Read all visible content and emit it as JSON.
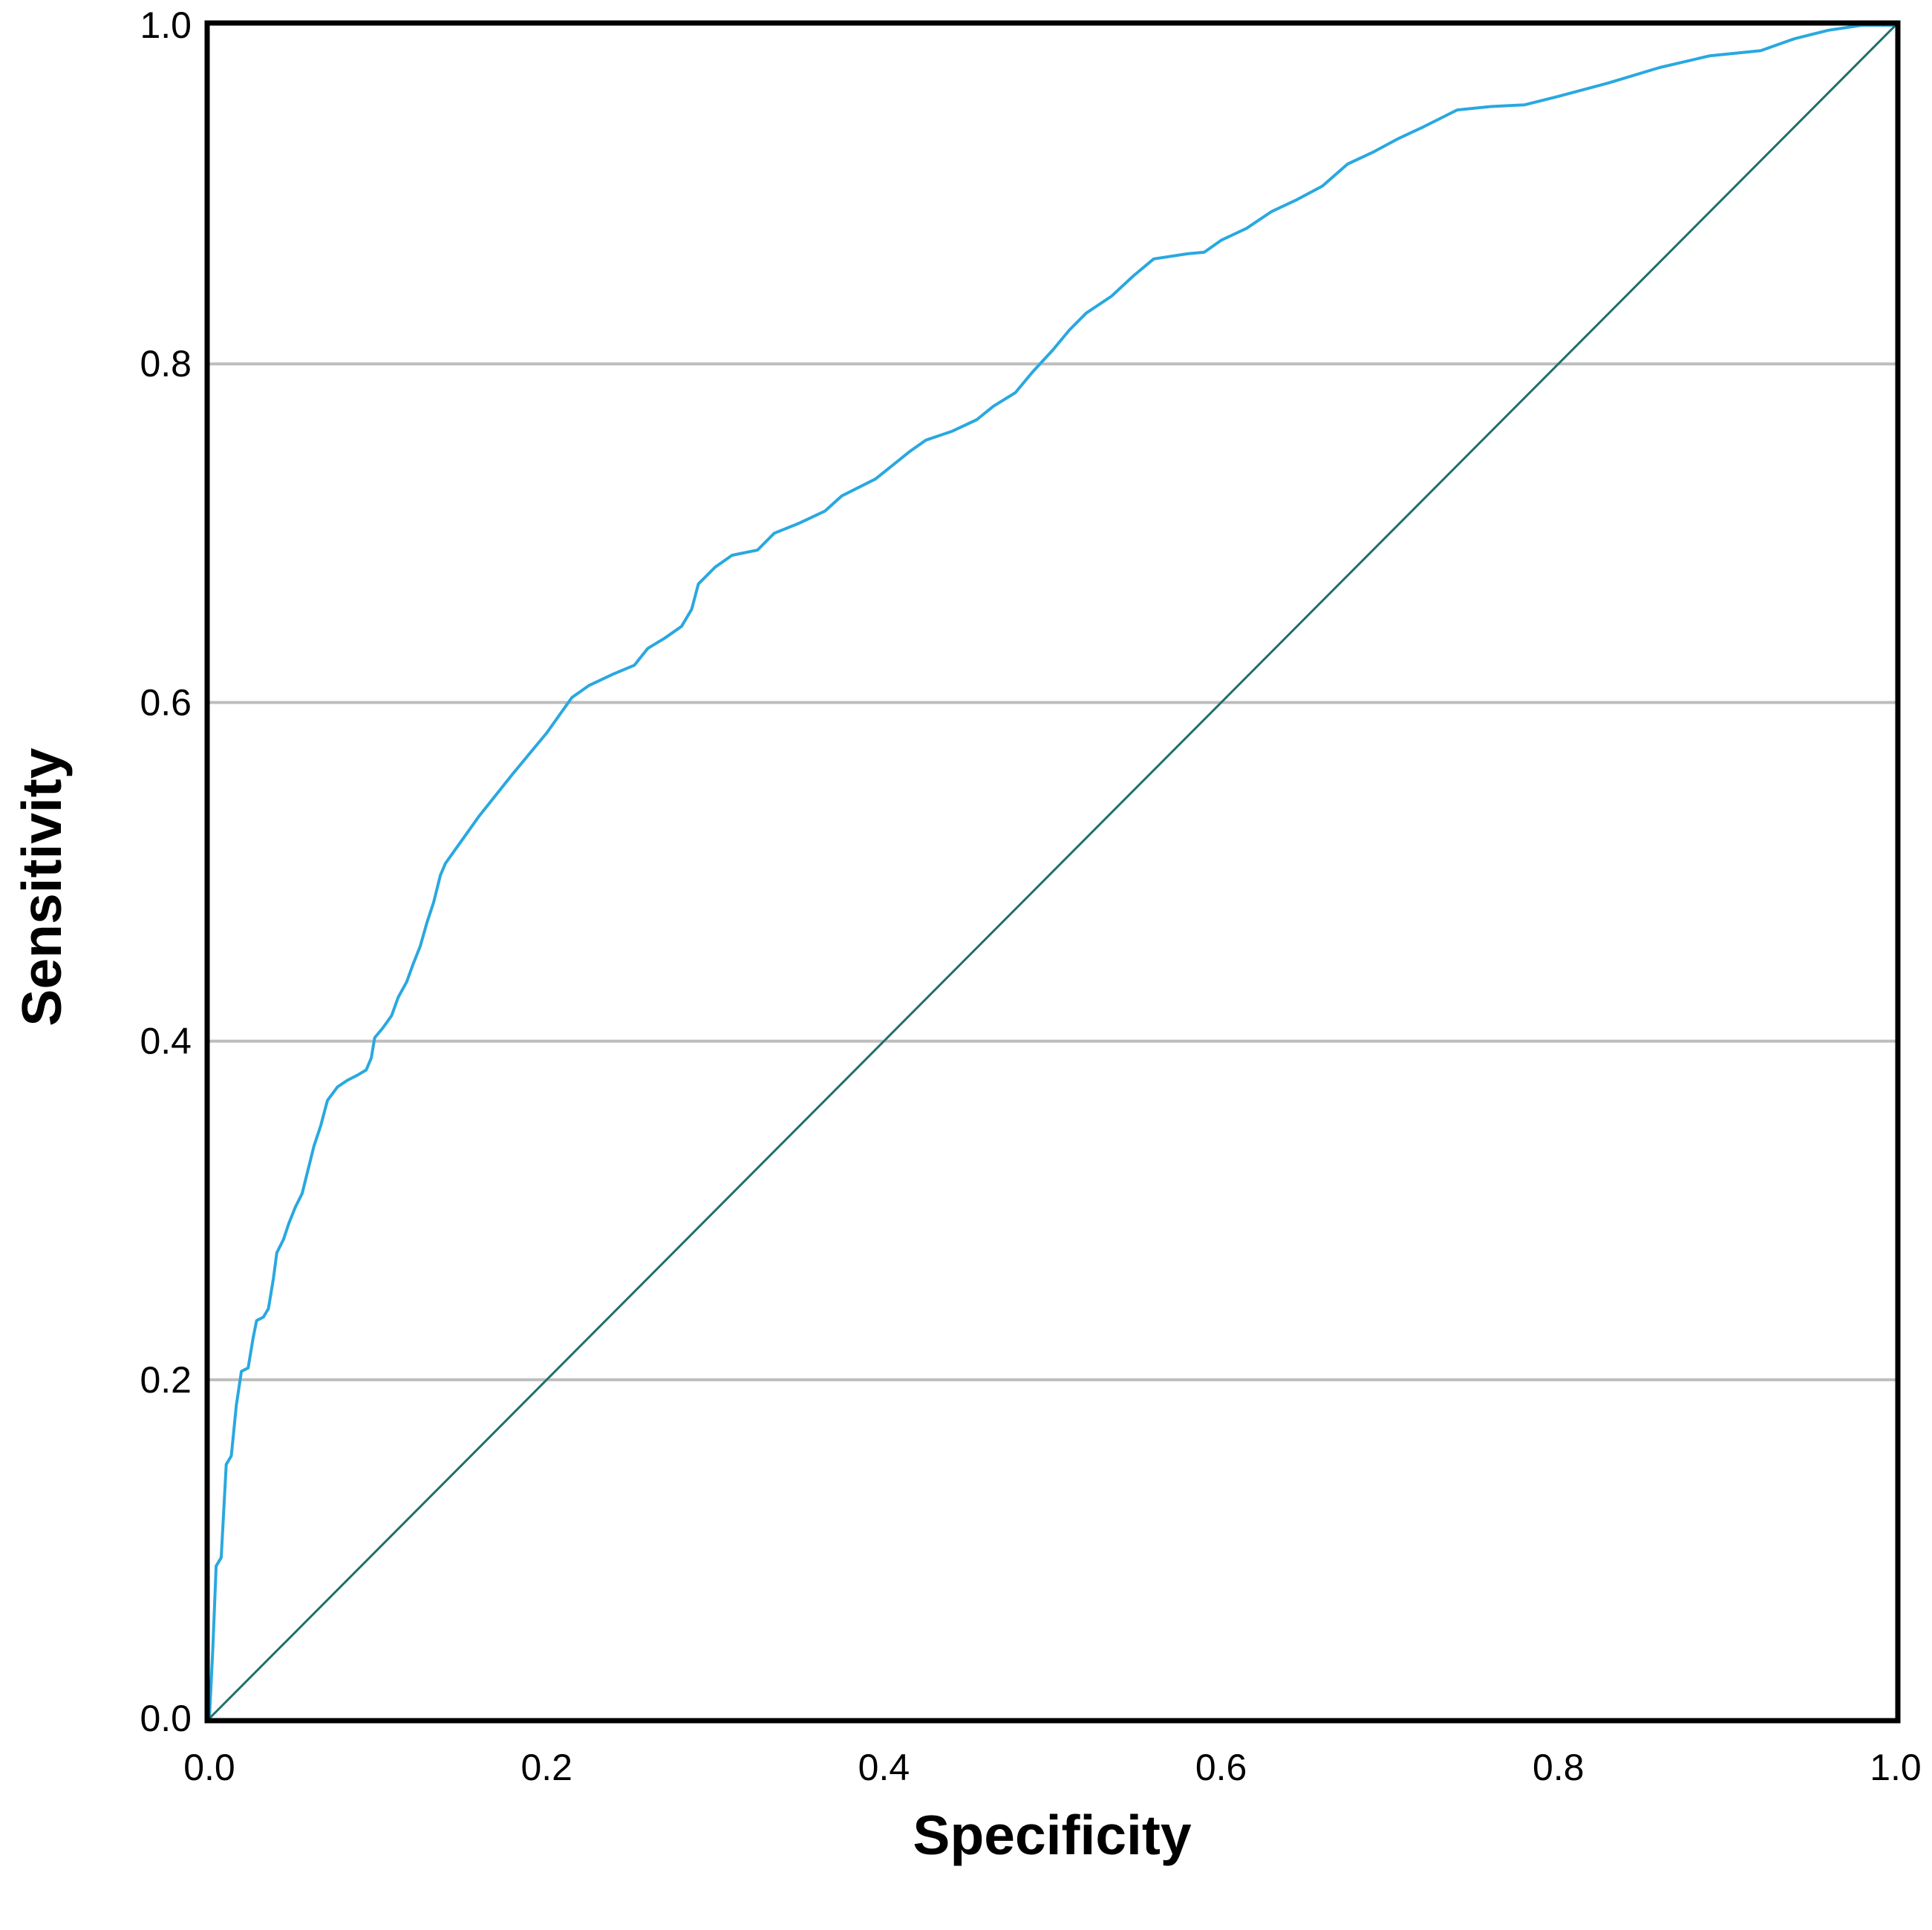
{
  "chart_data": {
    "type": "line",
    "title": "",
    "xlabel": "Specificity",
    "ylabel": "Sensitivity",
    "xlim": [
      0,
      1
    ],
    "ylim": [
      0,
      1
    ],
    "x_ticks": [
      "0.0",
      "0.2",
      "0.4",
      "0.6",
      "0.8",
      "1.0"
    ],
    "y_ticks": [
      "0.0",
      "0.2",
      "0.4",
      "0.6",
      "0.8",
      "1.0"
    ],
    "grid": "horizontal",
    "legend": "none",
    "colors": {
      "roc_curve": "#29a8e0",
      "reference_line": "#1f6f6a",
      "gridline": "#bdbdbd",
      "frame": "#000000"
    },
    "series": [
      {
        "role": "roc_curve",
        "points": [
          [
            0.0,
            0.0
          ],
          [
            0.002,
            0.04
          ],
          [
            0.004,
            0.09
          ],
          [
            0.007,
            0.095
          ],
          [
            0.01,
            0.15
          ],
          [
            0.013,
            0.155
          ],
          [
            0.016,
            0.185
          ],
          [
            0.019,
            0.205
          ],
          [
            0.023,
            0.207
          ],
          [
            0.026,
            0.225
          ],
          [
            0.028,
            0.235
          ],
          [
            0.032,
            0.237
          ],
          [
            0.035,
            0.242
          ],
          [
            0.038,
            0.26
          ],
          [
            0.04,
            0.275
          ],
          [
            0.044,
            0.283
          ],
          [
            0.047,
            0.292
          ],
          [
            0.051,
            0.302
          ],
          [
            0.055,
            0.31
          ],
          [
            0.058,
            0.322
          ],
          [
            0.062,
            0.338
          ],
          [
            0.066,
            0.35
          ],
          [
            0.07,
            0.365
          ],
          [
            0.076,
            0.373
          ],
          [
            0.082,
            0.377
          ],
          [
            0.088,
            0.38
          ],
          [
            0.093,
            0.383
          ],
          [
            0.096,
            0.39
          ],
          [
            0.098,
            0.402
          ],
          [
            0.103,
            0.408
          ],
          [
            0.108,
            0.415
          ],
          [
            0.112,
            0.426
          ],
          [
            0.117,
            0.435
          ],
          [
            0.121,
            0.446
          ],
          [
            0.125,
            0.456
          ],
          [
            0.129,
            0.47
          ],
          [
            0.133,
            0.482
          ],
          [
            0.137,
            0.498
          ],
          [
            0.14,
            0.505
          ],
          [
            0.16,
            0.533
          ],
          [
            0.18,
            0.558
          ],
          [
            0.2,
            0.582
          ],
          [
            0.215,
            0.603
          ],
          [
            0.225,
            0.61
          ],
          [
            0.24,
            0.617
          ],
          [
            0.252,
            0.622
          ],
          [
            0.26,
            0.632
          ],
          [
            0.27,
            0.638
          ],
          [
            0.28,
            0.645
          ],
          [
            0.286,
            0.655
          ],
          [
            0.29,
            0.67
          ],
          [
            0.3,
            0.68
          ],
          [
            0.31,
            0.687
          ],
          [
            0.325,
            0.69
          ],
          [
            0.335,
            0.7
          ],
          [
            0.35,
            0.706
          ],
          [
            0.365,
            0.713
          ],
          [
            0.375,
            0.722
          ],
          [
            0.385,
            0.727
          ],
          [
            0.395,
            0.732
          ],
          [
            0.405,
            0.74
          ],
          [
            0.415,
            0.748
          ],
          [
            0.425,
            0.755
          ],
          [
            0.44,
            0.76
          ],
          [
            0.455,
            0.767
          ],
          [
            0.465,
            0.775
          ],
          [
            0.478,
            0.783
          ],
          [
            0.488,
            0.795
          ],
          [
            0.5,
            0.808
          ],
          [
            0.51,
            0.82
          ],
          [
            0.52,
            0.83
          ],
          [
            0.535,
            0.84
          ],
          [
            0.548,
            0.852
          ],
          [
            0.56,
            0.862
          ],
          [
            0.58,
            0.865
          ],
          [
            0.59,
            0.866
          ],
          [
            0.6,
            0.873
          ],
          [
            0.615,
            0.88
          ],
          [
            0.63,
            0.89
          ],
          [
            0.645,
            0.897
          ],
          [
            0.66,
            0.905
          ],
          [
            0.675,
            0.918
          ],
          [
            0.69,
            0.925
          ],
          [
            0.705,
            0.933
          ],
          [
            0.72,
            0.94
          ],
          [
            0.74,
            0.95
          ],
          [
            0.76,
            0.952
          ],
          [
            0.78,
            0.953
          ],
          [
            0.8,
            0.958
          ],
          [
            0.83,
            0.966
          ],
          [
            0.86,
            0.975
          ],
          [
            0.89,
            0.982
          ],
          [
            0.92,
            0.985
          ],
          [
            0.94,
            0.992
          ],
          [
            0.96,
            0.997
          ],
          [
            0.98,
            1.0
          ],
          [
            1.0,
            1.0
          ]
        ]
      },
      {
        "role": "reference_line",
        "points": [
          [
            0,
            0
          ],
          [
            1,
            1
          ]
        ]
      }
    ]
  }
}
